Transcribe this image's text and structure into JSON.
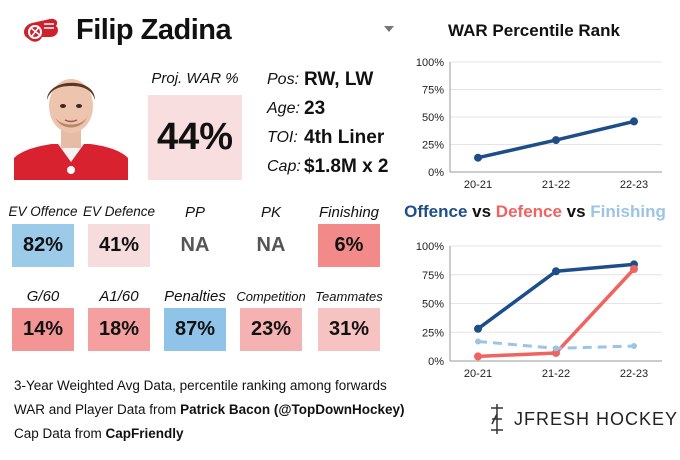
{
  "player": {
    "name": "Filip Zadina"
  },
  "war": {
    "label": "Proj. WAR %",
    "value": "44%",
    "color": "#f8dede"
  },
  "info": [
    {
      "key": "Pos:",
      "value": "RW, LW"
    },
    {
      "key": "Age:",
      "value": "23"
    },
    {
      "key": "TOI:",
      "value": "4th Liner"
    },
    {
      "key": "Cap:",
      "value": "$1.8M x 2"
    }
  ],
  "metrics_row1": [
    {
      "label": "EV Offence",
      "value": "82%",
      "color": "#9ccbea"
    },
    {
      "label": "EV Defence",
      "value": "41%",
      "color": "#f6dcdc"
    },
    {
      "label": "PP",
      "value": "NA",
      "color": "#ffffff"
    },
    {
      "label": "PK",
      "value": "NA",
      "color": "#ffffff"
    },
    {
      "label": "Finishing",
      "value": "6%",
      "color": "#f28a8a"
    }
  ],
  "metrics_row2": [
    {
      "label": "G/60",
      "value": "14%",
      "color": "#f39595"
    },
    {
      "label": "A1/60",
      "value": "18%",
      "color": "#f4a0a0"
    },
    {
      "label": "Penalties",
      "value": "87%",
      "color": "#8fc4e8"
    },
    {
      "label": "Competition",
      "value": "23%",
      "color": "#f5b2b2"
    },
    {
      "label": "Teammates",
      "value": "31%",
      "color": "#f6c2c2"
    }
  ],
  "footer": {
    "line1": "3-Year Weighted Avg Data, percentile ranking among forwards",
    "line2_prefix": "WAR and Player Data from ",
    "line2_bold": "Patrick Bacon (@TopDownHockey)",
    "line3_prefix": "Cap Data from ",
    "line3_bold": "CapFriendly",
    "brand": "JFRESH HOCKEY"
  },
  "chart_data": [
    {
      "type": "line",
      "title": "WAR Percentile Rank",
      "x": [
        "20-21",
        "21-22",
        "22-23"
      ],
      "ylim": [
        0,
        100
      ],
      "yticks": [
        "0%",
        "25%",
        "50%",
        "75%",
        "100%"
      ],
      "grid": true,
      "series": [
        {
          "values": [
            13,
            29,
            46
          ],
          "color": "#1d4e89",
          "style": "solid"
        }
      ]
    },
    {
      "type": "line",
      "title_parts": [
        {
          "text": "Offence",
          "color": "#1d4e89"
        },
        {
          "text": " vs ",
          "color": "#111111"
        },
        {
          "text": "Defence",
          "color": "#ef6461"
        },
        {
          "text": " vs ",
          "color": "#111111"
        },
        {
          "text": "Finishing",
          "color": "#9cc4e4"
        }
      ],
      "x": [
        "20-21",
        "21-22",
        "22-23"
      ],
      "ylim": [
        0,
        100
      ],
      "yticks": [
        "0%",
        "25%",
        "50%",
        "75%",
        "100%"
      ],
      "grid": true,
      "series": [
        {
          "name": "Offence",
          "values": [
            28,
            78,
            84
          ],
          "color": "#1d4e89",
          "style": "solid"
        },
        {
          "name": "Defence",
          "values": [
            4,
            7,
            80
          ],
          "color": "#ef6461",
          "style": "solid"
        },
        {
          "name": "Finishing",
          "values": [
            17,
            11,
            13
          ],
          "color": "#9cc4e4",
          "style": "dashed"
        }
      ]
    }
  ]
}
